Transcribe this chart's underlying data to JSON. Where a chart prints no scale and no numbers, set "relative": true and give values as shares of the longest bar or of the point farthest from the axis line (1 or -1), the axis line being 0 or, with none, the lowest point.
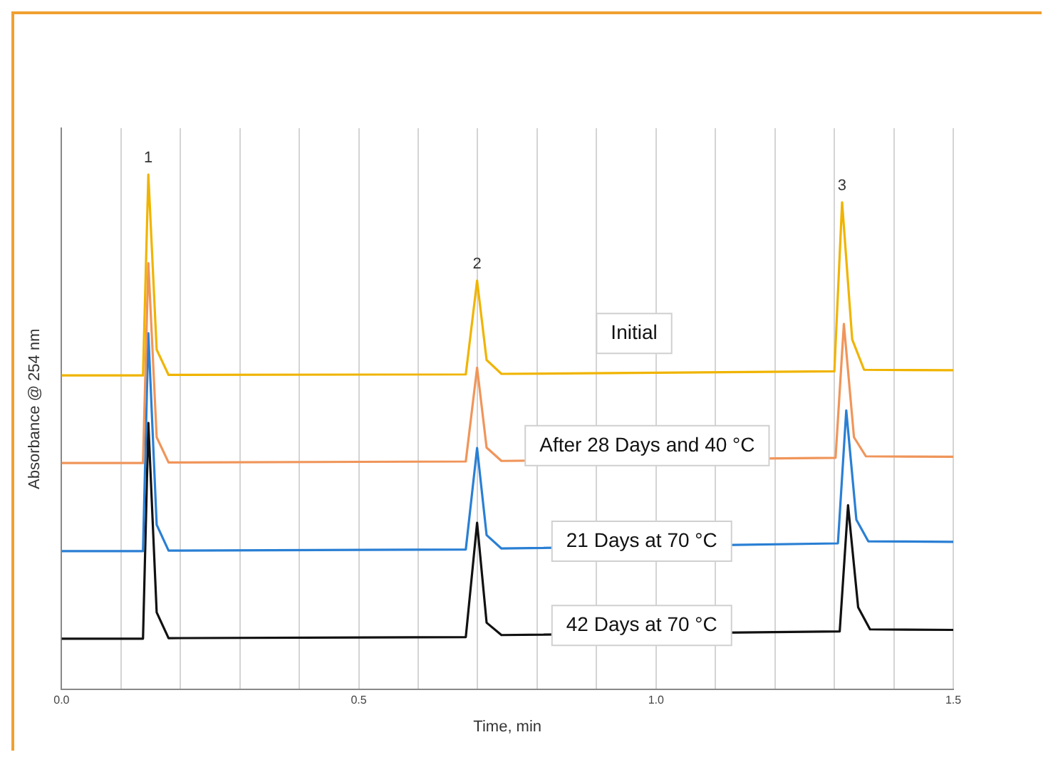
{
  "chart_data": {
    "type": "line",
    "xlabel": "Time, min",
    "ylabel": "Absorbance @ 254 nm",
    "relative": true,
    "marker": "none",
    "grid": "x",
    "xlim": [
      0,
      1.5
    ],
    "xticks": [
      {
        "value": 0,
        "label": "0.0"
      },
      {
        "value": 0.1,
        "label": null
      },
      {
        "value": 0.2,
        "label": null
      },
      {
        "value": 0.3,
        "label": null
      },
      {
        "value": 0.4,
        "label": null
      },
      {
        "value": 0.5,
        "label": "0.5"
      },
      {
        "value": 0.6,
        "label": null
      },
      {
        "value": 0.7,
        "label": null
      },
      {
        "value": 0.8,
        "label": null
      },
      {
        "value": 0.9,
        "label": null
      },
      {
        "value": 1.0,
        "label": "1.0"
      },
      {
        "value": 1.1,
        "label": null
      },
      {
        "value": 1.2,
        "label": null
      },
      {
        "value": 1.3,
        "label": null
      },
      {
        "value": 1.4,
        "label": null
      },
      {
        "value": 1.5,
        "label": "1.5"
      }
    ],
    "series": [
      {
        "name": "Initial",
        "color": "#f0b400",
        "x": [
          0,
          0.137,
          0.146,
          0.16,
          0.18,
          0.68,
          0.699,
          0.715,
          0.74,
          1.3,
          1.313,
          1.33,
          1.35,
          1.5
        ],
        "values": [
          0.61,
          0.61,
          1.0,
          0.66,
          0.611,
          0.612,
          0.794,
          0.64,
          0.613,
          0.618,
          0.946,
          0.68,
          0.621,
          0.62
        ]
      },
      {
        "name": "After 28 Days and 40 °C",
        "color": "#f0955a",
        "x": [
          0,
          0.137,
          0.146,
          0.16,
          0.18,
          0.68,
          0.699,
          0.715,
          0.74,
          1.302,
          1.316,
          1.333,
          1.353,
          1.5
        ],
        "values": [
          0.44,
          0.44,
          0.828,
          0.49,
          0.441,
          0.443,
          0.625,
          0.47,
          0.444,
          0.45,
          0.71,
          0.49,
          0.453,
          0.452
        ]
      },
      {
        "name": "21 Days at 70 °C",
        "color": "#2a7fd4",
        "x": [
          0,
          0.137,
          0.146,
          0.16,
          0.18,
          0.68,
          0.699,
          0.715,
          0.74,
          1.306,
          1.32,
          1.337,
          1.357,
          1.5
        ],
        "values": [
          0.269,
          0.269,
          0.692,
          0.32,
          0.27,
          0.272,
          0.469,
          0.3,
          0.274,
          0.284,
          0.542,
          0.33,
          0.288,
          0.287
        ]
      },
      {
        "name": "42 Days at 70 °C",
        "color": "#111111",
        "x": [
          0,
          0.137,
          0.146,
          0.16,
          0.18,
          0.68,
          0.699,
          0.715,
          0.74,
          1.309,
          1.323,
          1.34,
          1.36,
          1.5
        ],
        "values": [
          0.099,
          0.099,
          0.518,
          0.15,
          0.1,
          0.102,
          0.324,
          0.13,
          0.106,
          0.113,
          0.358,
          0.16,
          0.117,
          0.116
        ]
      }
    ],
    "annotations": [
      {
        "text": "1",
        "x": 0.146,
        "y": 1.0
      },
      {
        "text": "2",
        "x": 0.699,
        "y": 0.794
      },
      {
        "text": "3",
        "x": 1.313,
        "y": 0.946
      }
    ]
  }
}
